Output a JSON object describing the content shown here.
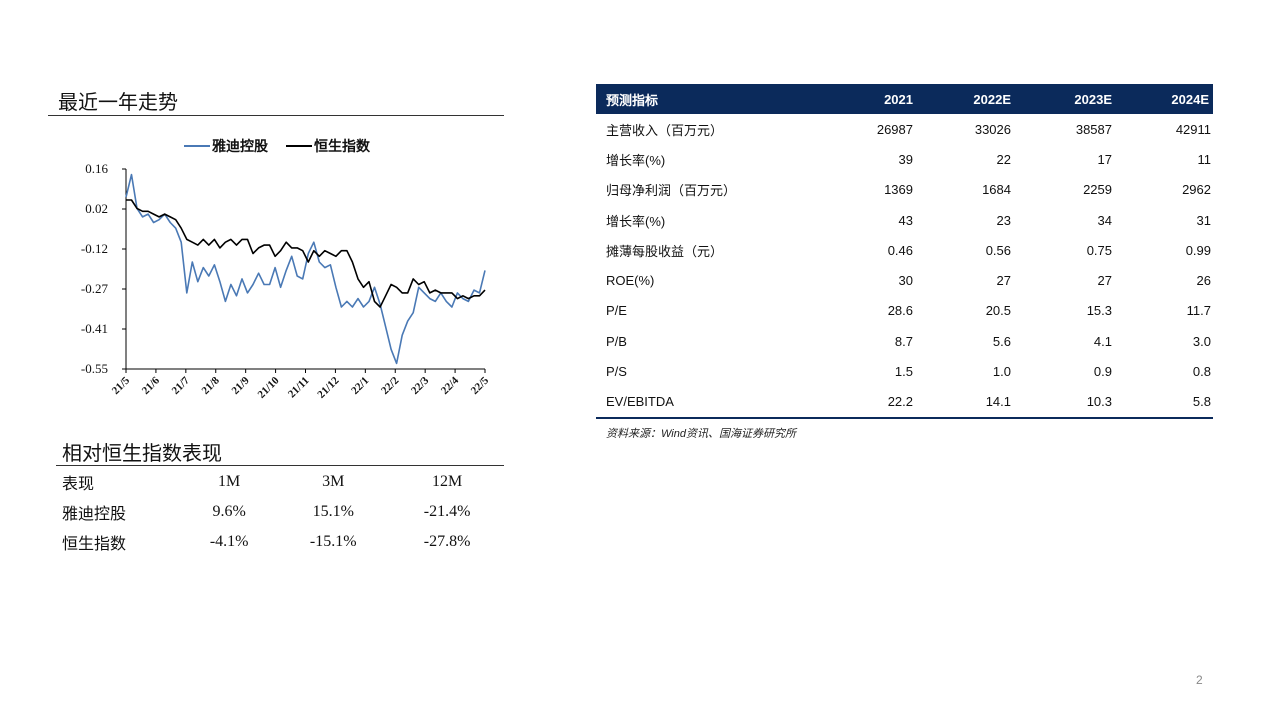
{
  "chart_section": {
    "title": "最近一年走势"
  },
  "chart_data": {
    "type": "line",
    "legend": [
      "雅迪控股",
      "恒生指数"
    ],
    "legend_position": "top",
    "y_ticks": [
      "0.16",
      "0.02",
      "-0.12",
      "-0.27",
      "-0.41",
      "-0.55"
    ],
    "ylim": [
      -0.55,
      0.16
    ],
    "x_ticks": [
      "21/5",
      "21/6",
      "21/7",
      "21/8",
      "21/9",
      "21/10",
      "21/11",
      "21/12",
      "22/1",
      "22/2",
      "22/3",
      "22/4",
      "22/5"
    ],
    "colors": {
      "yadea": "#4a79b5",
      "hsi": "#000000"
    },
    "series": [
      {
        "name": "雅迪控股",
        "values": [
          0.06,
          0.14,
          0.02,
          -0.01,
          0.0,
          -0.03,
          -0.02,
          0.0,
          -0.03,
          -0.05,
          -0.1,
          -0.28,
          -0.17,
          -0.24,
          -0.19,
          -0.22,
          -0.18,
          -0.24,
          -0.31,
          -0.25,
          -0.29,
          -0.23,
          -0.28,
          -0.25,
          -0.21,
          -0.25,
          -0.25,
          -0.19,
          -0.26,
          -0.2,
          -0.15,
          -0.22,
          -0.23,
          -0.14,
          -0.1,
          -0.17,
          -0.19,
          -0.18,
          -0.26,
          -0.33,
          -0.31,
          -0.33,
          -0.3,
          -0.33,
          -0.31,
          -0.26,
          -0.32,
          -0.4,
          -0.48,
          -0.53,
          -0.43,
          -0.38,
          -0.35,
          -0.26,
          -0.28,
          -0.3,
          -0.31,
          -0.28,
          -0.31,
          -0.33,
          -0.28,
          -0.3,
          -0.31,
          -0.27,
          -0.28,
          -0.2
        ]
      },
      {
        "name": "恒生指数",
        "values": [
          0.05,
          0.05,
          0.02,
          0.01,
          0.01,
          0.0,
          -0.01,
          0.0,
          -0.01,
          -0.02,
          -0.05,
          -0.09,
          -0.1,
          -0.11,
          -0.09,
          -0.11,
          -0.09,
          -0.12,
          -0.1,
          -0.09,
          -0.11,
          -0.09,
          -0.09,
          -0.14,
          -0.12,
          -0.11,
          -0.11,
          -0.15,
          -0.13,
          -0.1,
          -0.12,
          -0.12,
          -0.13,
          -0.17,
          -0.13,
          -0.15,
          -0.13,
          -0.14,
          -0.15,
          -0.13,
          -0.13,
          -0.17,
          -0.23,
          -0.26,
          -0.24,
          -0.31,
          -0.33,
          -0.29,
          -0.25,
          -0.26,
          -0.28,
          -0.28,
          -0.23,
          -0.25,
          -0.24,
          -0.28,
          -0.27,
          -0.28,
          -0.28,
          -0.28,
          -0.3,
          -0.29,
          -0.3,
          -0.29,
          -0.29,
          -0.27
        ]
      }
    ]
  },
  "performance": {
    "title": "相对恒生指数表现",
    "headers": [
      "表现",
      "1M",
      "3M",
      "12M"
    ],
    "rows": [
      [
        "雅迪控股",
        "9.6%",
        "15.1%",
        "-21.4%"
      ],
      [
        "恒生指数",
        "-4.1%",
        "-15.1%",
        "-27.8%"
      ]
    ]
  },
  "forecast": {
    "headers": [
      "预测指标",
      "2021",
      "2022E",
      "2023E",
      "2024E"
    ],
    "rows": [
      [
        "主营收入（百万元）",
        "26987",
        "33026",
        "38587",
        "42911"
      ],
      [
        "增长率(%)",
        "39",
        "22",
        "17",
        "11"
      ],
      [
        "归母净利润（百万元）",
        "1369",
        "1684",
        "2259",
        "2962"
      ],
      [
        "增长率(%)",
        "43",
        "23",
        "34",
        "31"
      ],
      [
        "摊薄每股收益（元）",
        "0.46",
        "0.56",
        "0.75",
        "0.99"
      ],
      [
        "ROE(%)",
        "30",
        "27",
        "27",
        "26"
      ],
      [
        "P/E",
        "28.6",
        "20.5",
        "15.3",
        "11.7"
      ],
      [
        "P/B",
        "8.7",
        "5.6",
        "4.1",
        "3.0"
      ],
      [
        "P/S",
        "1.5",
        "1.0",
        "0.9",
        "0.8"
      ],
      [
        "EV/EBITDA",
        "22.2",
        "14.1",
        "10.3",
        "5.8"
      ]
    ],
    "source": "资料来源：Wind资讯、国海证券研究所"
  },
  "page_number": "2"
}
